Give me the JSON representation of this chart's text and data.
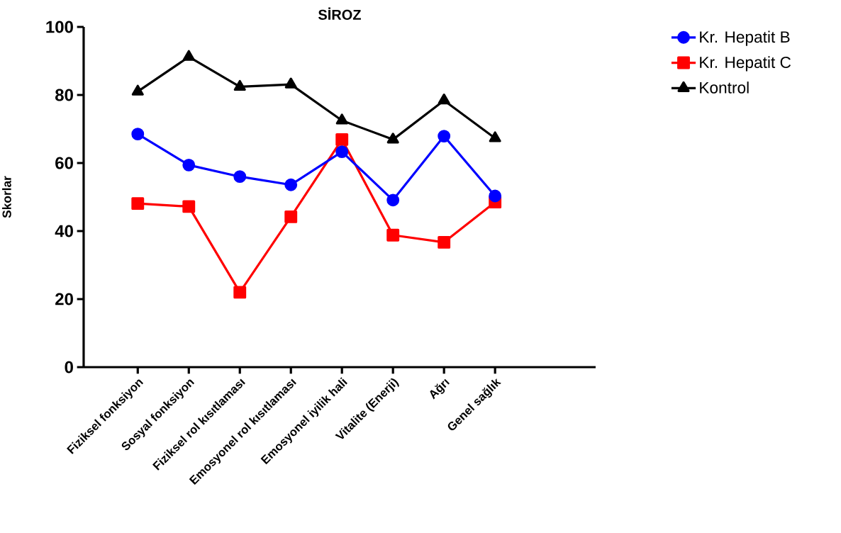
{
  "chart_data": {
    "type": "line",
    "title": "SİROZ",
    "ylabel": "Skorlar",
    "categories": [
      "Fiziksel fonksiyon",
      "Sosyal fonksiyon",
      "Fiziksel rol kısıtlaması",
      "Emosyonel rol kısıtlaması",
      "Emosyonel iyilik hali",
      "Vitalite (Enerji)",
      "Ağrı",
      "Genel sağlık"
    ],
    "series": [
      {
        "name": "Kr. Hepatit B",
        "color": "#0000ff",
        "marker": "circle",
        "values": [
          68.5,
          59.4,
          56.0,
          53.6,
          63.3,
          49.1,
          67.9,
          50.3
        ]
      },
      {
        "name": "Kr. Hepatit C",
        "color": "#ff0000",
        "marker": "square",
        "values": [
          48.1,
          47.2,
          22.0,
          44.2,
          66.9,
          38.8,
          36.7,
          48.5
        ]
      },
      {
        "name": "Kontrol",
        "color": "#000000",
        "marker": "triangle",
        "values": [
          81.0,
          91.2,
          82.4,
          83.1,
          72.5,
          66.9,
          78.4,
          67.3
        ]
      }
    ],
    "ylim": [
      0,
      100
    ],
    "yticks": [
      0,
      20,
      40,
      60,
      80,
      100
    ],
    "grid": false,
    "legend": "top right",
    "line_style": "solid"
  }
}
